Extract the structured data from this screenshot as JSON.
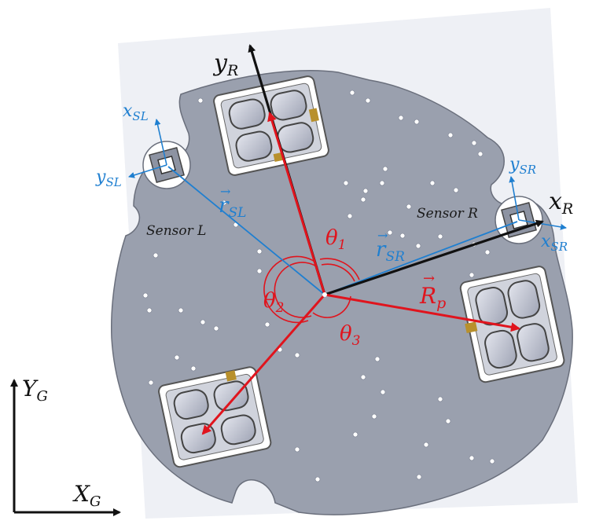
{
  "colors": {
    "robot_frame": "#111111",
    "sensor_frames": "#1f7fd0",
    "wheel_vectors": "#e0141d",
    "plate": "#9aa0ae"
  },
  "labels": {
    "y_R": {
      "main": "y",
      "sub": "R"
    },
    "x_R": {
      "main": "x",
      "sub": "R"
    },
    "x_SL": {
      "main": "x",
      "sub": "SL"
    },
    "y_SL": {
      "main": "y",
      "sub": "SL"
    },
    "y_SR": {
      "main": "y",
      "sub": "SR"
    },
    "x_SR": {
      "main": "x",
      "sub": "SR"
    },
    "r_SL": {
      "main": "r",
      "sub": "SL",
      "accent": "→"
    },
    "r_SR": {
      "main": "r",
      "sub": "SR",
      "accent": "→"
    },
    "R_p": {
      "main": "R",
      "sub": "p",
      "accent": "→"
    },
    "theta_1": {
      "main": "θ",
      "sub": "1"
    },
    "theta_2": {
      "main": "θ",
      "sub": "2"
    },
    "theta_3": {
      "main": "θ",
      "sub": "3"
    },
    "Y_G": {
      "main": "Y",
      "sub": "G"
    },
    "X_G": {
      "main": "X",
      "sub": "G"
    },
    "sensor_L": "Sensor L",
    "sensor_R": "Sensor R"
  }
}
